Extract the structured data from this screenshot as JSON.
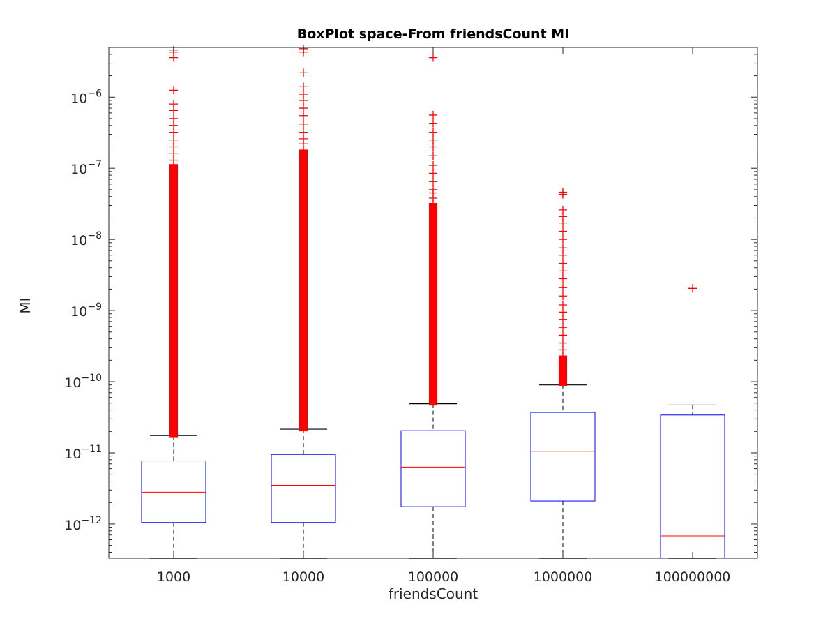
{
  "chart_data": {
    "type": "box",
    "title": "BoxPlot space-From friendsCount MI",
    "xlabel": "friendsCount",
    "ylabel": "MI",
    "yscale": "log",
    "ylim": [
      3.3e-13,
      5e-06
    ],
    "ytick_exponents": [
      -12,
      -11,
      -10,
      -9,
      -8,
      -7,
      -6
    ],
    "grid": false,
    "colors": {
      "box": "#0000ff",
      "median": "#ff0000",
      "whisker": "#000000",
      "outlier": "#ff0000",
      "axes": "#262626"
    },
    "categories": [
      "1000",
      "10000",
      "100000",
      "1000000",
      "100000000"
    ],
    "boxes": [
      {
        "category": "1000",
        "whisker_low": 3.3e-13,
        "q1": 1.05e-12,
        "median": 2.8e-12,
        "q3": 7.7e-12,
        "whisker_high": 1.75e-11,
        "outlier_band": [
          1.9e-11,
          1e-07
        ],
        "outliers": [
          4.6e-10,
          1.1e-07,
          1.3e-07,
          1.6e-07,
          2e-07,
          2.5e-07,
          3.2e-07,
          4e-07,
          5e-07,
          6.5e-07,
          8e-07,
          1.25e-06,
          3.6e-06,
          4.3e-06,
          4.6e-06
        ]
      },
      {
        "category": "10000",
        "whisker_low": 3.3e-13,
        "q1": 1.05e-12,
        "median": 3.5e-12,
        "q3": 9.5e-12,
        "whisker_high": 2.15e-11,
        "outlier_band": [
          2.3e-11,
          1.6e-07
        ],
        "outliers": [
          1.8e-07,
          2.2e-07,
          2.6e-07,
          3.2e-07,
          4.2e-07,
          5.5e-07,
          7e-07,
          9e-07,
          1.1e-06,
          1.4e-06,
          2.2e-06,
          4.3e-06,
          4.8e-06
        ]
      },
      {
        "category": "100000",
        "whisker_low": 3.3e-13,
        "q1": 1.75e-12,
        "median": 6.3e-12,
        "q3": 2.05e-11,
        "whisker_high": 4.9e-11,
        "outlier_band": [
          5.3e-11,
          2.8e-08
        ],
        "outliers": [
          7e-10,
          1e-09,
          3.2e-08,
          3.8e-08,
          4.5e-08,
          5e-08,
          6.5e-08,
          8.5e-08,
          1.1e-07,
          1.5e-07,
          2e-07,
          2.5e-07,
          3.2e-07,
          4.3e-07,
          5.6e-07,
          3.6e-06
        ]
      },
      {
        "category": "1000000",
        "whisker_low": 3.3e-13,
        "q1": 2.1e-12,
        "median": 1.05e-11,
        "q3": 3.7e-11,
        "whisker_high": 9e-11,
        "outlier_band": [
          1e-10,
          2e-10
        ],
        "outliers": [
          2.3e-10,
          2.8e-10,
          3.5e-10,
          4.5e-10,
          5.8e-10,
          7.5e-10,
          9.5e-10,
          1.2e-09,
          1.6e-09,
          2.1e-09,
          2.8e-09,
          3.6e-09,
          4.6e-09,
          6e-09,
          7.6e-09,
          1e-08,
          1.3e-08,
          1.7e-08,
          2.1e-08,
          2.6e-08,
          4.3e-08,
          4.6e-08
        ]
      },
      {
        "category": "100000000",
        "whisker_low": 3.3e-13,
        "q1": 3.3e-13,
        "median": 6.8e-13,
        "q3": 3.4e-11,
        "whisker_high": 4.7e-11,
        "outlier_band": null,
        "outliers": [
          2.05e-09
        ]
      }
    ]
  }
}
